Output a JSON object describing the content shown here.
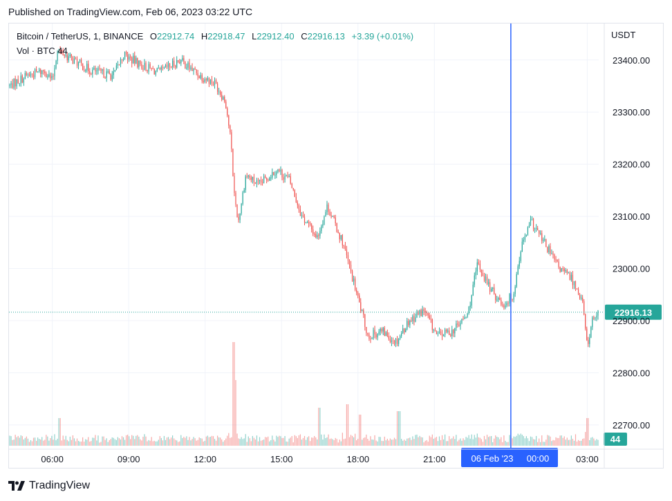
{
  "published": "Published on TradingView.com, Feb 06, 2023 03:22 UTC",
  "legend": {
    "symbol": "Bitcoin / TetherUS, 1, BINANCE",
    "o_label": "O",
    "o_value": "22912.74",
    "h_label": "H",
    "h_value": "22918.47",
    "l_label": "L",
    "l_value": "22912.40",
    "c_label": "C",
    "c_value": "22916.13",
    "change": "+3.39 (+0.01%)",
    "vol_label": "Vol · BTC",
    "vol_value": "44"
  },
  "unit": "USDT",
  "last_price_label": "22916.13",
  "last_volume_label": "44",
  "crosshair": {
    "date_label": "06 Feb '23",
    "time_label": "00:00"
  },
  "footer": {
    "brand": "TradingView"
  },
  "colors": {
    "up": "#26a69a",
    "down": "#ef5350",
    "crosshair": "#2962ff",
    "grid": "#f0f3fa"
  },
  "chart_data": {
    "type": "candlestick",
    "title": "Bitcoin / TetherUS, 1, BINANCE",
    "y_unit": "USDT",
    "y_ticks": [
      "23400.00",
      "23300.00",
      "23200.00",
      "23100.00",
      "23000.00",
      "22900.00",
      "22800.00",
      "22700.00"
    ],
    "ylim": [
      22660,
      23470
    ],
    "x_ticks": [
      "06:00",
      "09:00",
      "12:00",
      "15:00",
      "18:00",
      "21:00",
      "03:00"
    ],
    "x_tick_hours": [
      6,
      9,
      12,
      15,
      18,
      21,
      27
    ],
    "x_range_hours": [
      4.3,
      27.45
    ],
    "crosshair_hour": 24,
    "last_price": 22916.13,
    "grid": true,
    "price_path": [
      {
        "t": 4.3,
        "p": 23350
      },
      {
        "t": 5.0,
        "p": 23370
      },
      {
        "t": 5.7,
        "p": 23380
      },
      {
        "t": 6.0,
        "p": 23360
      },
      {
        "t": 6.2,
        "p": 23420
      },
      {
        "t": 6.8,
        "p": 23400
      },
      {
        "t": 7.5,
        "p": 23380
      },
      {
        "t": 8.4,
        "p": 23370
      },
      {
        "t": 8.8,
        "p": 23410
      },
      {
        "t": 9.5,
        "p": 23390
      },
      {
        "t": 10.2,
        "p": 23375
      },
      {
        "t": 11.0,
        "p": 23400
      },
      {
        "t": 11.8,
        "p": 23370
      },
      {
        "t": 12.4,
        "p": 23355
      },
      {
        "t": 12.8,
        "p": 23320
      },
      {
        "t": 13.0,
        "p": 23250
      },
      {
        "t": 13.15,
        "p": 23140
      },
      {
        "t": 13.3,
        "p": 23090
      },
      {
        "t": 13.6,
        "p": 23180
      },
      {
        "t": 14.1,
        "p": 23160
      },
      {
        "t": 14.8,
        "p": 23190
      },
      {
        "t": 15.3,
        "p": 23170
      },
      {
        "t": 15.8,
        "p": 23100
      },
      {
        "t": 16.4,
        "p": 23060
      },
      {
        "t": 16.8,
        "p": 23120
      },
      {
        "t": 17.4,
        "p": 23050
      },
      {
        "t": 17.9,
        "p": 22960
      },
      {
        "t": 18.4,
        "p": 22870
      },
      {
        "t": 18.9,
        "p": 22880
      },
      {
        "t": 19.5,
        "p": 22860
      },
      {
        "t": 20.0,
        "p": 22900
      },
      {
        "t": 20.6,
        "p": 22920
      },
      {
        "t": 21.1,
        "p": 22870
      },
      {
        "t": 21.7,
        "p": 22880
      },
      {
        "t": 22.3,
        "p": 22910
      },
      {
        "t": 22.7,
        "p": 23010
      },
      {
        "t": 23.2,
        "p": 22960
      },
      {
        "t": 23.7,
        "p": 22930
      },
      {
        "t": 24.1,
        "p": 22950
      },
      {
        "t": 24.4,
        "p": 23040
      },
      {
        "t": 24.8,
        "p": 23090
      },
      {
        "t": 25.3,
        "p": 23050
      },
      {
        "t": 25.9,
        "p": 23000
      },
      {
        "t": 26.4,
        "p": 22980
      },
      {
        "t": 26.8,
        "p": 22940
      },
      {
        "t": 27.0,
        "p": 22850
      },
      {
        "t": 27.2,
        "p": 22900
      },
      {
        "t": 27.45,
        "p": 22916
      }
    ],
    "volume_spikes": [
      {
        "t": 6.3,
        "v": 40
      },
      {
        "t": 13.1,
        "v": 150
      },
      {
        "t": 13.15,
        "v": 95
      },
      {
        "t": 16.5,
        "v": 55
      },
      {
        "t": 17.6,
        "v": 60
      },
      {
        "t": 18.1,
        "v": 45
      },
      {
        "t": 19.6,
        "v": 50
      },
      {
        "t": 27.0,
        "v": 40
      }
    ]
  }
}
